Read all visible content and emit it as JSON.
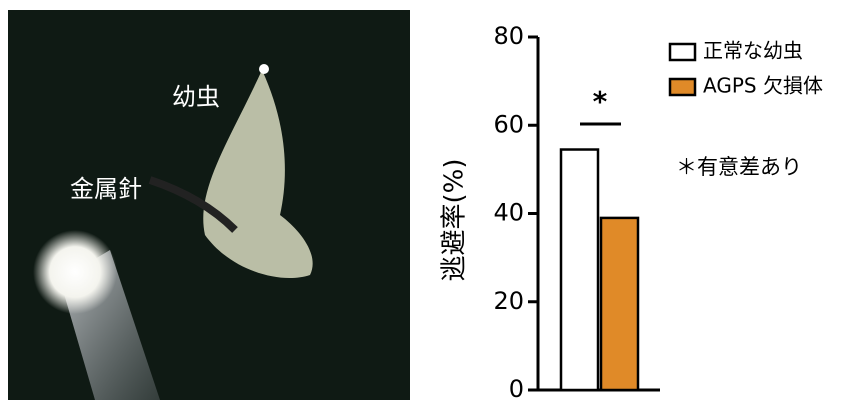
{
  "photo": {
    "labels": [
      "幼虫",
      "金属針"
    ]
  },
  "chart_data": {
    "type": "bar",
    "ylabel": "逃避率(%)",
    "categories": [
      null
    ],
    "series": [
      {
        "name": "正常な幼虫",
        "color": "#ffffff",
        "values": [
          54.5
        ]
      },
      {
        "name": "AGPS 欠損体",
        "color": "#e08a28",
        "values": [
          39
        ]
      }
    ],
    "ylim": [
      0,
      80
    ],
    "yticks": [
      0,
      20,
      40,
      60,
      80
    ],
    "grid": false,
    "legend": "top-right",
    "annotations": {
      "significance": "*",
      "note": "＊有意差あり"
    }
  }
}
